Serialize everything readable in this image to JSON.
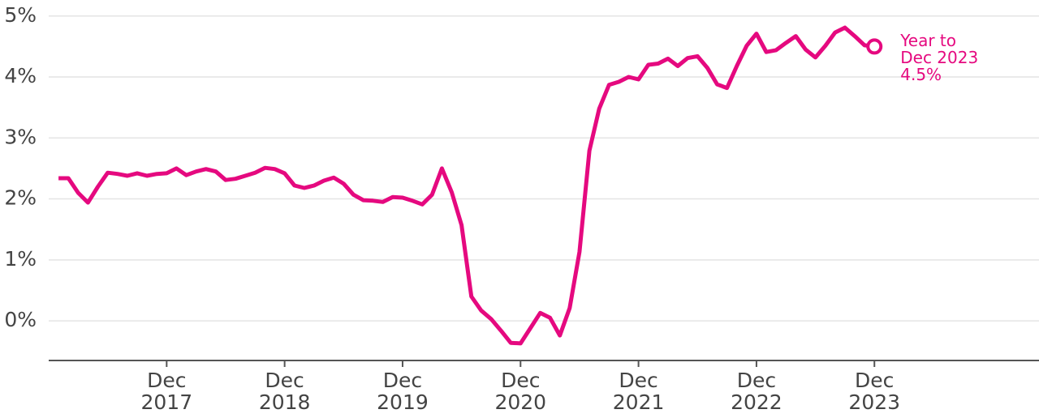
{
  "chart_data": {
    "type": "line",
    "x": [
      "2017-01",
      "2017-02",
      "2017-03",
      "2017-04",
      "2017-05",
      "2017-06",
      "2017-07",
      "2017-08",
      "2017-09",
      "2017-10",
      "2017-11",
      "2017-12",
      "2018-01",
      "2018-02",
      "2018-03",
      "2018-04",
      "2018-05",
      "2018-06",
      "2018-07",
      "2018-08",
      "2018-09",
      "2018-10",
      "2018-11",
      "2018-12",
      "2019-01",
      "2019-02",
      "2019-03",
      "2019-04",
      "2019-05",
      "2019-06",
      "2019-07",
      "2019-08",
      "2019-09",
      "2019-10",
      "2019-11",
      "2019-12",
      "2020-01",
      "2020-02",
      "2020-03",
      "2020-04",
      "2020-05",
      "2020-06",
      "2020-07",
      "2020-08",
      "2020-09",
      "2020-10",
      "2020-11",
      "2020-12",
      "2021-01",
      "2021-02",
      "2021-03",
      "2021-04",
      "2021-05",
      "2021-06",
      "2021-07",
      "2021-08",
      "2021-09",
      "2021-10",
      "2021-11",
      "2021-12",
      "2022-01",
      "2022-02",
      "2022-03",
      "2022-04",
      "2022-05",
      "2022-06",
      "2022-07",
      "2022-08",
      "2022-09",
      "2022-10",
      "2022-11",
      "2022-12",
      "2023-01",
      "2023-02",
      "2023-03",
      "2023-04",
      "2023-05",
      "2023-06",
      "2023-07",
      "2023-08",
      "2023-09",
      "2023-10",
      "2023-11",
      "2023-12"
    ],
    "values": [
      2.34,
      2.34,
      2.1,
      1.94,
      2.2,
      2.43,
      2.41,
      2.38,
      2.42,
      2.38,
      2.41,
      2.42,
      2.5,
      2.39,
      2.45,
      2.49,
      2.45,
      2.31,
      2.33,
      2.38,
      2.43,
      2.51,
      2.49,
      2.42,
      2.22,
      2.18,
      2.22,
      2.3,
      2.35,
      2.25,
      2.07,
      1.98,
      1.97,
      1.95,
      2.03,
      2.02,
      1.97,
      1.91,
      2.07,
      2.5,
      2.11,
      1.57,
      0.4,
      0.17,
      0.03,
      -0.16,
      -0.36,
      -0.37,
      -0.12,
      0.13,
      0.05,
      -0.24,
      0.21,
      1.13,
      2.79,
      3.48,
      3.87,
      3.92,
      4.0,
      3.96,
      4.2,
      4.22,
      4.3,
      4.18,
      4.31,
      4.34,
      4.15,
      3.88,
      3.82,
      4.18,
      4.51,
      4.71,
      4.41,
      4.44,
      4.56,
      4.67,
      4.45,
      4.32,
      4.51,
      4.73,
      4.81,
      4.67,
      4.52,
      4.5
    ],
    "color": "#e5097f",
    "annotation": [
      "Year to",
      "Dec 2023",
      "4.5%"
    ],
    "xlim": [
      "2016-12",
      "2025-04"
    ],
    "xticks": [
      {
        "value": "2017-12",
        "label": "Dec 2017"
      },
      {
        "value": "2018-12",
        "label": "Dec 2018"
      },
      {
        "value": "2019-12",
        "label": "Dec 2019"
      },
      {
        "value": "2020-12",
        "label": "Dec 2020"
      },
      {
        "value": "2021-12",
        "label": "Dec 2021"
      },
      {
        "value": "2022-12",
        "label": "Dec 2022"
      },
      {
        "value": "2023-12",
        "label": "Dec 2023"
      }
    ],
    "ylim": [
      -0.65,
      5.05
    ],
    "yticks": [
      {
        "value": 0,
        "label": "0%"
      },
      {
        "value": 1,
        "label": "1%"
      },
      {
        "value": 2,
        "label": "2%"
      },
      {
        "value": 3,
        "label": "3%"
      },
      {
        "value": 4,
        "label": "4%"
      },
      {
        "value": 5,
        "label": "5%"
      }
    ],
    "grid": true
  }
}
